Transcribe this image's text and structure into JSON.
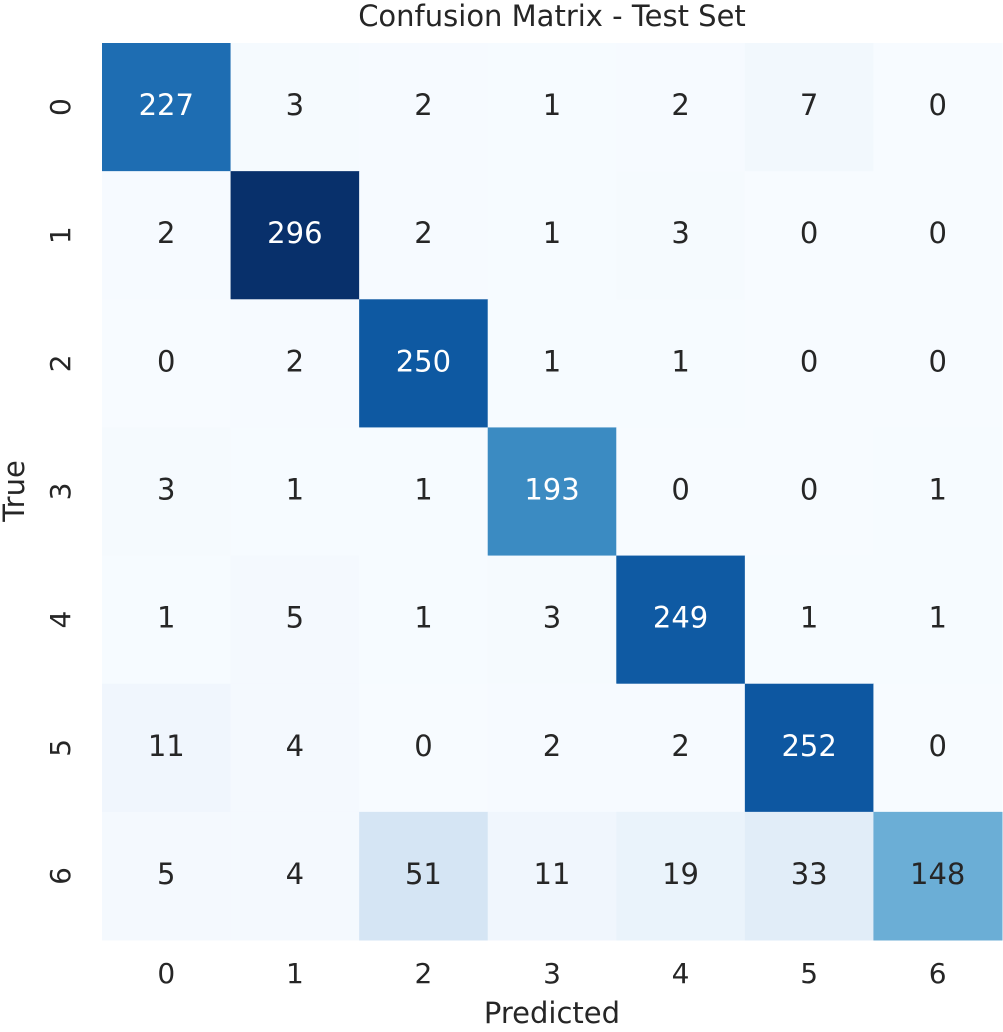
{
  "chart_data": {
    "type": "heatmap",
    "title": "Confusion Matrix - Test Set",
    "xlabel": "Predicted",
    "ylabel": "True",
    "x_categories": [
      "0",
      "1",
      "2",
      "3",
      "4",
      "5",
      "6"
    ],
    "y_categories": [
      "0",
      "1",
      "2",
      "3",
      "4",
      "5",
      "6"
    ],
    "colormap": "Blues",
    "matrix": [
      [
        227,
        3,
        2,
        1,
        2,
        7,
        0
      ],
      [
        2,
        296,
        2,
        1,
        3,
        0,
        0
      ],
      [
        0,
        2,
        250,
        1,
        1,
        0,
        0
      ],
      [
        3,
        1,
        1,
        193,
        0,
        0,
        1
      ],
      [
        1,
        5,
        1,
        3,
        249,
        1,
        1
      ],
      [
        11,
        4,
        0,
        2,
        2,
        252,
        0
      ],
      [
        5,
        4,
        51,
        11,
        19,
        33,
        148
      ]
    ]
  }
}
